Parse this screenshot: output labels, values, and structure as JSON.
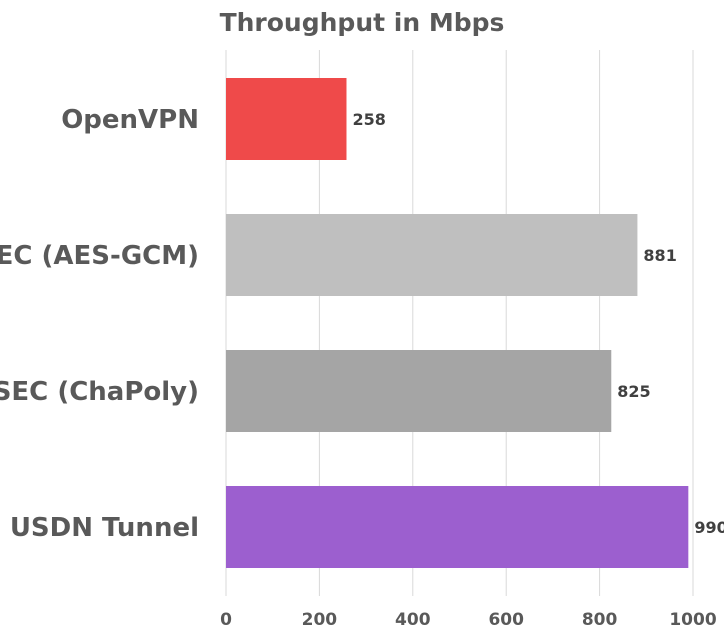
{
  "chart_data": {
    "type": "bar",
    "orientation": "horizontal",
    "title": "Throughput in Mbps",
    "xlabel": "",
    "ylabel": "",
    "categories": [
      "OpenVPN",
      "IPSEC (AES-GCM)",
      "IPSEC (ChaPoly)",
      "USDN Tunnel"
    ],
    "values": [
      258,
      881,
      825,
      990
    ],
    "colors": [
      "#ef4a4a",
      "#bfbfbf",
      "#a5a5a5",
      "#9c5fcf"
    ],
    "data_labels": [
      "258",
      "881",
      "825",
      "990"
    ],
    "xlim": [
      0,
      1000
    ],
    "xticks": [
      0,
      200,
      400,
      600,
      800,
      1000
    ],
    "xtick_labels": [
      "0",
      "200",
      "400",
      "600",
      "800",
      "1000"
    ],
    "grid": true,
    "legend": "none"
  }
}
